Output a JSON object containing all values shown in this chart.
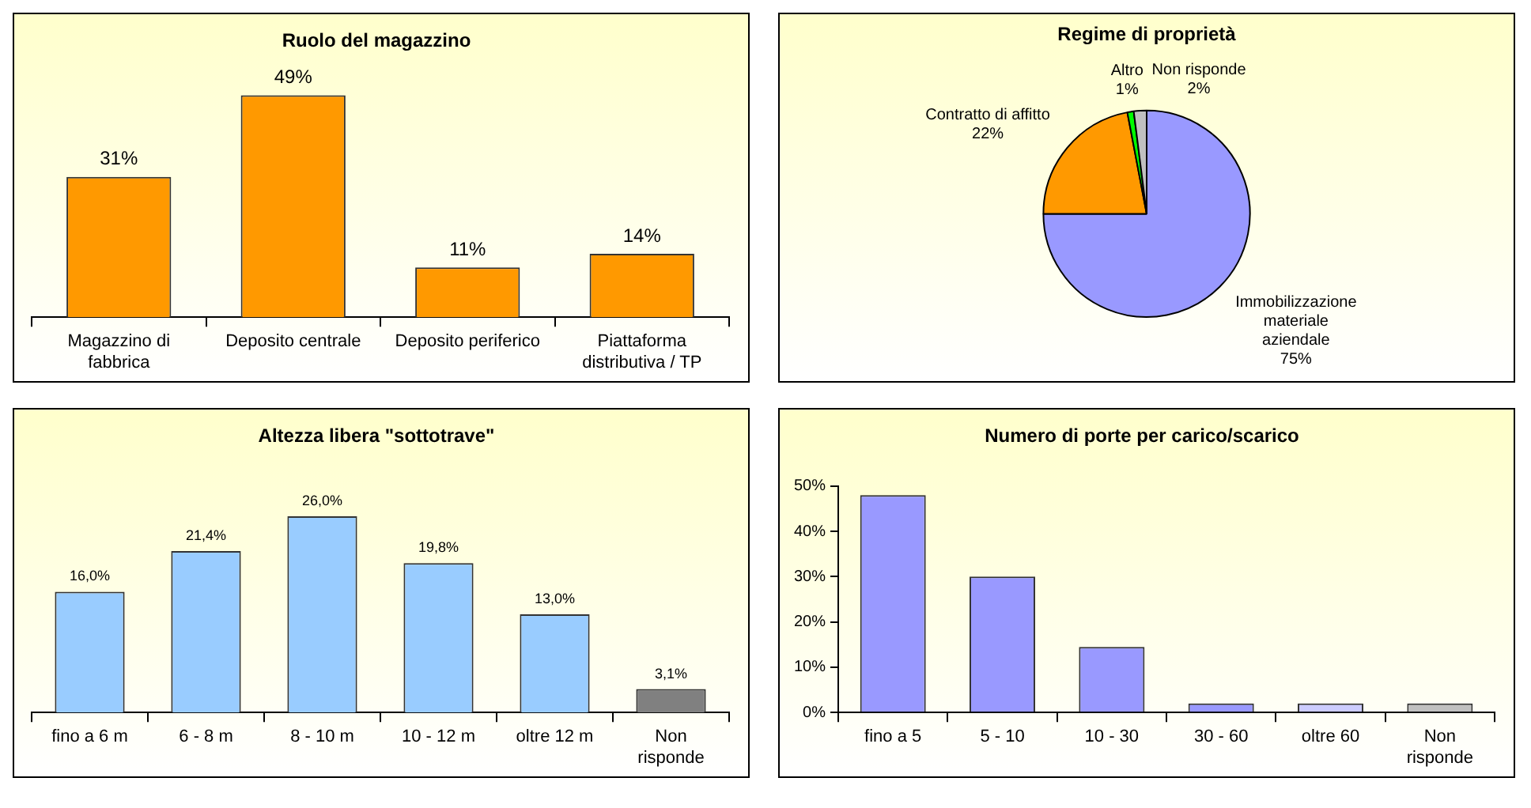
{
  "chart_data": [
    {
      "type": "bar",
      "title": "Ruolo del magazzino",
      "categories": [
        "Magazzino di fabbrica",
        "Deposito centrale",
        "Deposito periferico",
        "Piattaforma distributiva / TP"
      ],
      "values": [
        31,
        49,
        11,
        14
      ],
      "value_labels": [
        "31%",
        "49%",
        "11%",
        "14%"
      ],
      "color": "#ff9900",
      "tick_labels": "x",
      "grid": false
    },
    {
      "type": "pie",
      "title": "Regime di proprietà",
      "categories": [
        "Immobilizzazione materiale aziendale",
        "Contratto di affitto",
        "Altro",
        "Non risponde"
      ],
      "values": [
        75,
        22,
        1,
        2
      ],
      "value_labels": [
        "75%",
        "22%",
        "1%",
        "2%"
      ],
      "colors": [
        "#9999ff",
        "#ff9900",
        "#00ff00",
        "#c0c0c0"
      ]
    },
    {
      "type": "bar",
      "title": "Altezza libera \"sottotrave\"",
      "categories": [
        "fino a 6 m",
        "6 - 8 m",
        "8 - 10 m",
        "10 - 12 m",
        "oltre 12 m",
        "Non risponde"
      ],
      "values": [
        16.0,
        21.4,
        26.0,
        19.8,
        13.0,
        3.1
      ],
      "value_labels": [
        "16,0%",
        "21,4%",
        "26,0%",
        "19,8%",
        "13,0%",
        "3,1%"
      ],
      "colors": [
        "#99ccff",
        "#99ccff",
        "#99ccff",
        "#99ccff",
        "#99ccff",
        "#808080"
      ],
      "tick_labels": "x",
      "grid": false
    },
    {
      "type": "bar",
      "title": "Numero di porte per carico/scarico",
      "categories": [
        "fino a 5",
        "5 - 10",
        "10 - 30",
        "30 - 60",
        "oltre 60",
        "Non risponde"
      ],
      "values": [
        48,
        30,
        14.5,
        2,
        2,
        2
      ],
      "colors": [
        "#9999ff",
        "#9999ff",
        "#9999ff",
        "#9999ff",
        "#ccccff",
        "#c0c0c0"
      ],
      "ylim": [
        0,
        50
      ],
      "yticks": [
        {
          "value": 0,
          "label": "0%"
        },
        {
          "value": 10,
          "label": "10%"
        },
        {
          "value": 20,
          "label": "20%"
        },
        {
          "value": 30,
          "label": "30%"
        },
        {
          "value": 40,
          "label": "40%"
        },
        {
          "value": 50,
          "label": "50%"
        }
      ],
      "grid": false
    }
  ]
}
